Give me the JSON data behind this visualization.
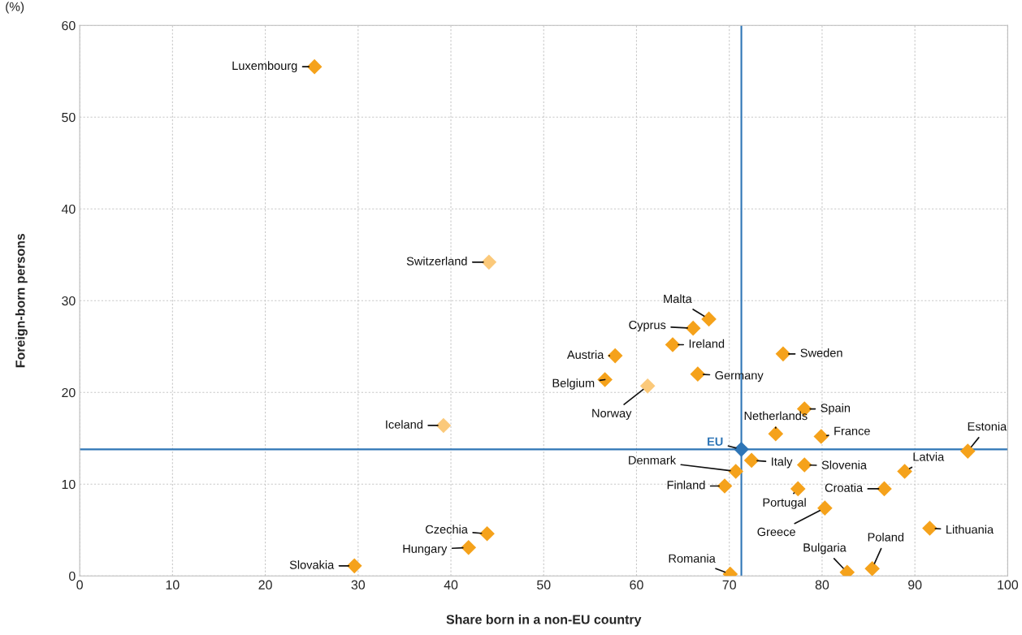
{
  "chart_data": {
    "type": "scatter",
    "xlabel": "Share born in a non-EU country",
    "ylabel": "Foreign-born persons",
    "xlim": [
      0,
      100
    ],
    "ylim": [
      0,
      60
    ],
    "xticks": [
      0,
      10,
      20,
      30,
      40,
      50,
      60,
      70,
      80,
      90,
      100
    ],
    "yticks": [
      0,
      10,
      20,
      30,
      40,
      50,
      60
    ],
    "grid": true,
    "marker": "diamond",
    "series": [
      {
        "color": "#f5a21b",
        "x": [
          25.3,
          67.8,
          66.1,
          63.9,
          57.7,
          75.8,
          66.6,
          56.6,
          78.1,
          75.0,
          79.9,
          95.7,
          72.4,
          78.1,
          70.7,
          88.9,
          69.5,
          77.4,
          86.7,
          80.3,
          43.9,
          91.6,
          41.9,
          29.6,
          70.1,
          82.7,
          85.4
        ],
        "values": [
          55.5,
          28.0,
          27.0,
          25.2,
          24.0,
          24.2,
          22.0,
          21.4,
          18.2,
          15.5,
          15.2,
          13.6,
          12.6,
          12.1,
          11.4,
          11.4,
          9.8,
          9.5,
          9.5,
          7.4,
          4.6,
          5.2,
          3.1,
          1.1,
          0.2,
          0.4,
          0.8
        ]
      },
      {
        "color": "#fbc97a",
        "x": [
          44.1,
          61.2,
          39.2
        ],
        "values": [
          34.2,
          20.7,
          16.4
        ]
      },
      {
        "color": "#2e75b6",
        "x": [
          71.3
        ],
        "values": [
          13.8
        ]
      }
    ],
    "ref_lines": [
      {
        "axis": "x",
        "value": 71.3,
        "color": "#2e75b6"
      },
      {
        "axis": "y",
        "value": 13.8,
        "color": "#2e75b6"
      }
    ],
    "annotations": [
      "(%)",
      {
        "text": "Luxembourg",
        "x": 25.3,
        "y": 55.5
      },
      {
        "text": "Malta",
        "x": 67.8,
        "y": 28.0
      },
      {
        "text": "Cyprus",
        "x": 66.1,
        "y": 27.0
      },
      {
        "text": "Ireland",
        "x": 63.9,
        "y": 25.2
      },
      {
        "text": "Austria",
        "x": 57.7,
        "y": 24.0
      },
      {
        "text": "Sweden",
        "x": 75.8,
        "y": 24.2
      },
      {
        "text": "Germany",
        "x": 66.6,
        "y": 22.0
      },
      {
        "text": "Belgium",
        "x": 56.6,
        "y": 21.4
      },
      {
        "text": "Spain",
        "x": 78.1,
        "y": 18.2
      },
      {
        "text": "Netherlands",
        "x": 75.0,
        "y": 15.5
      },
      {
        "text": "France",
        "x": 79.9,
        "y": 15.2
      },
      {
        "text": "Estonia",
        "x": 95.7,
        "y": 13.6
      },
      {
        "text": "Italy",
        "x": 72.4,
        "y": 12.6
      },
      {
        "text": "Slovenia",
        "x": 78.1,
        "y": 12.1
      },
      {
        "text": "Denmark",
        "x": 70.7,
        "y": 11.4
      },
      {
        "text": "Latvia",
        "x": 88.9,
        "y": 11.4
      },
      {
        "text": "Finland",
        "x": 69.5,
        "y": 9.8
      },
      {
        "text": "Portugal",
        "x": 77.4,
        "y": 9.5
      },
      {
        "text": "Croatia",
        "x": 86.7,
        "y": 9.5
      },
      {
        "text": "Greece",
        "x": 80.3,
        "y": 7.4
      },
      {
        "text": "Czechia",
        "x": 43.9,
        "y": 4.6
      },
      {
        "text": "Lithuania",
        "x": 91.6,
        "y": 5.2
      },
      {
        "text": "Hungary",
        "x": 41.9,
        "y": 3.1
      },
      {
        "text": "Slovakia",
        "x": 29.6,
        "y": 1.1
      },
      {
        "text": "Romania",
        "x": 70.1,
        "y": 0.2
      },
      {
        "text": "Bulgaria",
        "x": 82.7,
        "y": 0.4
      },
      {
        "text": "Poland",
        "x": 85.4,
        "y": 0.8
      },
      {
        "text": "Switzerland",
        "x": 44.1,
        "y": 34.2
      },
      {
        "text": "Norway",
        "x": 61.2,
        "y": 20.7
      },
      {
        "text": "Iceland",
        "x": 39.2,
        "y": 16.4
      },
      {
        "text": "EU",
        "x": 71.3,
        "y": 13.8
      }
    ]
  }
}
